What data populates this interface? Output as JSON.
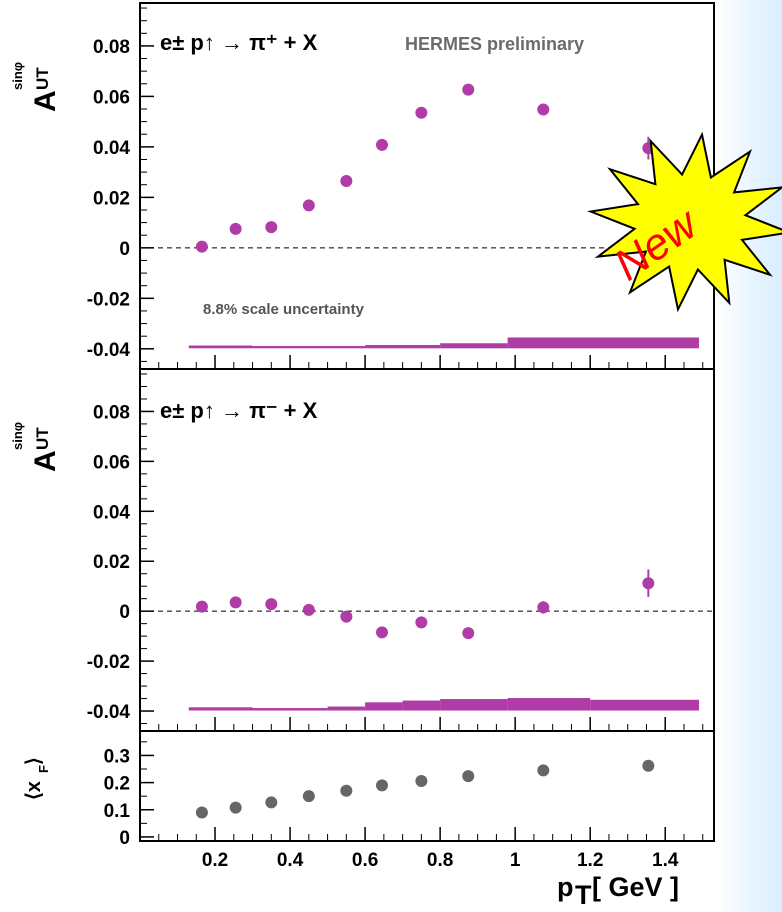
{
  "chart_data": [
    {
      "type": "scatter",
      "process_label": "e± p↑ → π⁺ + X",
      "annotation": "HERMES preliminary",
      "scale_note": "8.8% scale uncertainty",
      "badge": "New",
      "ylabel": "A_UT^sinφ",
      "ylim": [
        -0.048,
        0.097
      ],
      "yticks": [
        "0.08",
        "0.06",
        "0.04",
        "0.02",
        "0",
        "-0.02",
        "-0.04"
      ],
      "marker_color": "#b03ca8",
      "x": [
        0.165,
        0.255,
        0.35,
        0.45,
        0.55,
        0.645,
        0.75,
        0.875,
        1.075,
        1.355
      ],
      "y": [
        0.0005,
        0.0075,
        0.0082,
        0.0168,
        0.0265,
        0.0408,
        0.0535,
        0.0627,
        0.0548,
        0.0395
      ],
      "yerr": [
        0.001,
        0.001,
        0.001,
        0.001,
        0.001,
        0.001,
        0.001,
        0.001,
        0.0015,
        0.0045
      ],
      "systematic_band": [
        {
          "x0": 0.13,
          "x1": 0.3,
          "top": -0.0387
        },
        {
          "x0": 0.3,
          "x1": 0.6,
          "top": -0.0389
        },
        {
          "x0": 0.6,
          "x1": 0.8,
          "top": -0.0385
        },
        {
          "x0": 0.8,
          "x1": 0.98,
          "top": -0.0378
        },
        {
          "x0": 0.98,
          "x1": 1.49,
          "top": -0.0355
        }
      ],
      "band_bottom": -0.0398
    },
    {
      "type": "scatter",
      "process_label": "e± p↑ → π⁻ + X",
      "ylabel": "A_UT^sinφ",
      "ylim": [
        -0.048,
        0.097
      ],
      "yticks": [
        "0.08",
        "0.06",
        "0.04",
        "0.02",
        "0",
        "-0.02",
        "-0.04"
      ],
      "marker_color": "#b03ca8",
      "x": [
        0.165,
        0.255,
        0.35,
        0.45,
        0.55,
        0.645,
        0.75,
        0.875,
        1.075,
        1.355
      ],
      "y": [
        0.0018,
        0.0035,
        0.0028,
        0.0005,
        -0.0022,
        -0.0085,
        -0.0045,
        -0.0088,
        0.0015,
        0.0112
      ],
      "yerr": [
        0.001,
        0.001,
        0.001,
        0.001,
        0.001,
        0.001,
        0.001,
        0.001,
        0.0025,
        0.0055
      ],
      "systematic_band": [
        {
          "x0": 0.13,
          "x1": 0.3,
          "top": -0.0385
        },
        {
          "x0": 0.3,
          "x1": 0.5,
          "top": -0.0388
        },
        {
          "x0": 0.5,
          "x1": 0.6,
          "top": -0.0382
        },
        {
          "x0": 0.6,
          "x1": 0.7,
          "top": -0.0365
        },
        {
          "x0": 0.7,
          "x1": 0.8,
          "top": -0.0358
        },
        {
          "x0": 0.8,
          "x1": 0.98,
          "top": -0.0352
        },
        {
          "x0": 0.98,
          "x1": 1.2,
          "top": -0.0348
        },
        {
          "x0": 1.2,
          "x1": 1.49,
          "top": -0.0355
        }
      ],
      "band_bottom": -0.0398
    },
    {
      "type": "scatter",
      "ylabel": "⟨x_F⟩",
      "ylim": [
        -0.015,
        0.39
      ],
      "yticks": [
        "0.3",
        "0.2",
        "0.1",
        "0"
      ],
      "marker_color": "#666666",
      "x": [
        0.165,
        0.255,
        0.35,
        0.45,
        0.55,
        0.645,
        0.75,
        0.875,
        1.075,
        1.355
      ],
      "y": [
        0.09,
        0.108,
        0.127,
        0.15,
        0.17,
        0.19,
        0.206,
        0.224,
        0.245,
        0.262
      ],
      "xlabel": "p_T [ GeV ]",
      "xlim": [
        0.0,
        1.53
      ],
      "xticks": [
        "0.2",
        "0.4",
        "0.6",
        "0.8",
        "1",
        "1.2",
        "1.4"
      ]
    }
  ]
}
